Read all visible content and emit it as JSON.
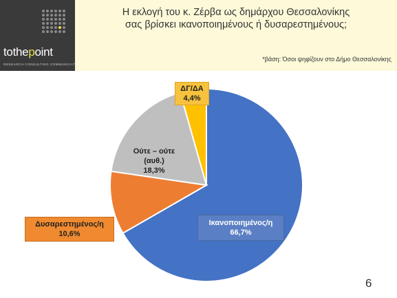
{
  "logo": {
    "word_start": "tothe",
    "word_highlight": "p",
    "word_end": "oint",
    "tagline": "RESEARCH   CONSULTING   COMMUNICATION"
  },
  "header": {
    "title_line1": "Η  εκλογή του κ. Ζέρβα ως δημάρχου Θεσσαλονίκης",
    "title_line2": "σας βρίσκει ικανοποιημένους ή δυσαρεστημένους;",
    "basis": "*βάση: Όσοι ψηφίζουν στο Δήμο Θεσσαλονίκης"
  },
  "chart_data": {
    "type": "pie",
    "title": "",
    "slices": [
      {
        "label": "Ικανοποιημένος/η",
        "value": 66.7,
        "value_label": "66,7%",
        "color": "#4472c4"
      },
      {
        "label": "Δυσαρεστημένος/η",
        "value": 10.6,
        "value_label": "10,6%",
        "color": "#ed7d31"
      },
      {
        "label_lines": [
          "Ούτε – ούτε",
          "(αυθ.)"
        ],
        "value": 18.3,
        "value_label": "18,3%",
        "color": "#bfbfbf"
      },
      {
        "label": "ΔΓ/ΔΑ",
        "value": 4.4,
        "value_label": "4,4%",
        "color": "#ffc000"
      }
    ],
    "start": "12 o'clock",
    "direction": "clockwise"
  },
  "page_number": "6"
}
